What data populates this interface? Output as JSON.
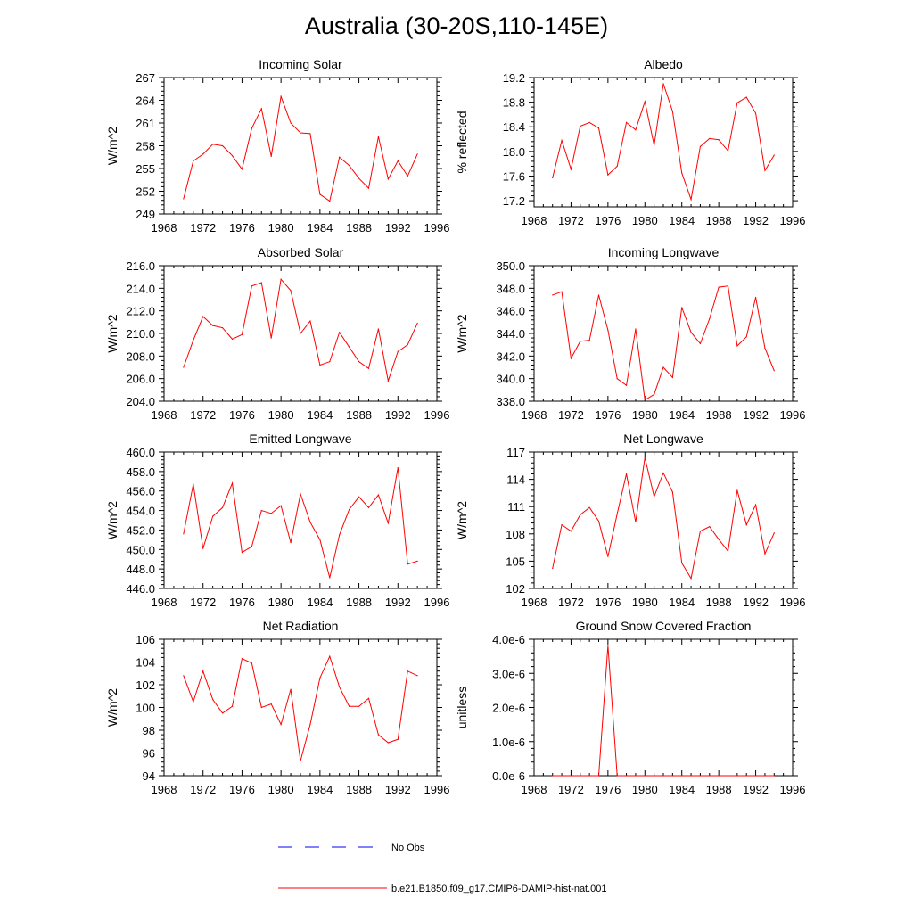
{
  "figure": {
    "title": "Australia (30-20S,110-145E)",
    "series_color": "#ff0000",
    "obs_color": "#0000ff"
  },
  "legend": {
    "entries": [
      {
        "label": "No Obs",
        "style": "dashed",
        "color": "#0000ff"
      },
      {
        "label": "b.e21.B1850.f09_g17.CMIP6-DAMIP-hist-nat.001",
        "style": "solid",
        "color": "#ff0000"
      }
    ]
  },
  "chart_data": [
    {
      "type": "line",
      "title": "Incoming Solar",
      "ylabel": "W/m^2",
      "xlim": [
        1968,
        1996
      ],
      "ylim": [
        249,
        267
      ],
      "xticks": [
        1968,
        1972,
        1976,
        1980,
        1984,
        1988,
        1992,
        1996
      ],
      "yticks": [
        249,
        252,
        255,
        258,
        261,
        264,
        267
      ],
      "ytick_labels": [
        "249",
        "252",
        "255",
        "258",
        "261",
        "264",
        "267"
      ],
      "x": [
        1970,
        1971,
        1972,
        1973,
        1974,
        1975,
        1976,
        1977,
        1978,
        1979,
        1980,
        1981,
        1982,
        1983,
        1984,
        1985,
        1986,
        1987,
        1988,
        1989,
        1990,
        1991,
        1992,
        1993,
        1994
      ],
      "series": [
        {
          "values": [
            251.0,
            256.0,
            256.9,
            258.2,
            258.0,
            256.7,
            254.9,
            260.3,
            262.9,
            256.6,
            264.5,
            261.0,
            259.7,
            259.6,
            251.6,
            250.7,
            256.5,
            255.4,
            253.7,
            252.4,
            259.2,
            253.6,
            256.0,
            254.0,
            256.9
          ]
        }
      ]
    },
    {
      "type": "line",
      "title": "Albedo",
      "ylabel": "% reflected",
      "xlim": [
        1968,
        1996
      ],
      "ylim": [
        17.1,
        19.2
      ],
      "xticks": [
        1968,
        1972,
        1976,
        1980,
        1984,
        1988,
        1992,
        1996
      ],
      "yticks": [
        17.2,
        17.6,
        18.0,
        18.4,
        18.8,
        19.2
      ],
      "ytick_labels": [
        "17.2",
        "17.6",
        "18.0",
        "18.4",
        "18.8",
        "19.2"
      ],
      "x": [
        1970,
        1971,
        1972,
        1973,
        1974,
        1975,
        1976,
        1977,
        1978,
        1979,
        1980,
        1981,
        1982,
        1983,
        1984,
        1985,
        1986,
        1987,
        1988,
        1989,
        1990,
        1991,
        1992,
        1993,
        1994
      ],
      "series": [
        {
          "values": [
            17.57,
            18.18,
            17.71,
            18.41,
            18.47,
            18.38,
            17.62,
            17.76,
            18.47,
            18.35,
            18.81,
            18.1,
            19.1,
            18.65,
            17.65,
            17.22,
            18.08,
            18.21,
            18.19,
            18.01,
            18.79,
            18.88,
            18.62,
            17.69,
            17.94
          ]
        }
      ]
    },
    {
      "type": "line",
      "title": "Absorbed Solar",
      "ylabel": "W/m^2",
      "xlim": [
        1968,
        1996
      ],
      "ylim": [
        204,
        216
      ],
      "xticks": [
        1968,
        1972,
        1976,
        1980,
        1984,
        1988,
        1992,
        1996
      ],
      "yticks": [
        204,
        206,
        208,
        210,
        212,
        214,
        216
      ],
      "ytick_labels": [
        "204.0",
        "206.0",
        "208.0",
        "210.0",
        "212.0",
        "214.0",
        "216.0"
      ],
      "x": [
        1970,
        1971,
        1972,
        1973,
        1974,
        1975,
        1976,
        1977,
        1978,
        1979,
        1980,
        1981,
        1982,
        1983,
        1984,
        1985,
        1986,
        1987,
        1988,
        1989,
        1990,
        1991,
        1992,
        1993,
        1994
      ],
      "series": [
        {
          "values": [
            207.0,
            209.4,
            211.5,
            210.7,
            210.5,
            209.5,
            209.9,
            214.2,
            214.5,
            209.6,
            214.8,
            213.8,
            210.0,
            211.1,
            207.2,
            207.5,
            210.1,
            208.8,
            207.5,
            206.9,
            210.4,
            205.8,
            208.4,
            209.0,
            210.9
          ]
        }
      ]
    },
    {
      "type": "line",
      "title": "Incoming Longwave",
      "ylabel": "W/m^2",
      "xlim": [
        1968,
        1996
      ],
      "ylim": [
        338,
        350
      ],
      "xticks": [
        1968,
        1972,
        1976,
        1980,
        1984,
        1988,
        1992,
        1996
      ],
      "yticks": [
        338,
        340,
        342,
        344,
        346,
        348,
        350
      ],
      "ytick_labels": [
        "338.0",
        "340.0",
        "342.0",
        "344.0",
        "346.0",
        "348.0",
        "350.0"
      ],
      "x": [
        1970,
        1971,
        1972,
        1973,
        1974,
        1975,
        1976,
        1977,
        1978,
        1979,
        1980,
        1981,
        1982,
        1983,
        1984,
        1985,
        1986,
        1987,
        1988,
        1989,
        1990,
        1991,
        1992,
        1993,
        1994
      ],
      "series": [
        {
          "values": [
            347.4,
            347.7,
            341.8,
            343.3,
            343.4,
            347.4,
            344.3,
            340.0,
            339.4,
            344.4,
            338.1,
            338.6,
            341.0,
            340.1,
            346.3,
            344.1,
            343.1,
            345.3,
            348.1,
            348.2,
            342.9,
            343.7,
            347.2,
            342.7,
            340.7
          ]
        }
      ]
    },
    {
      "type": "line",
      "title": "Emitted Longwave",
      "ylabel": "W/m^2",
      "xlim": [
        1968,
        1996
      ],
      "ylim": [
        446,
        460
      ],
      "xticks": [
        1968,
        1972,
        1976,
        1980,
        1984,
        1988,
        1992,
        1996
      ],
      "yticks": [
        446,
        448,
        450,
        452,
        454,
        456,
        458,
        460
      ],
      "ytick_labels": [
        "446.0",
        "448.0",
        "450.0",
        "452.0",
        "454.0",
        "456.0",
        "458.0",
        "460.0"
      ],
      "x": [
        1970,
        1971,
        1972,
        1973,
        1974,
        1975,
        1976,
        1977,
        1978,
        1979,
        1980,
        1981,
        1982,
        1983,
        1984,
        1985,
        1986,
        1987,
        1988,
        1989,
        1990,
        1991,
        1992,
        1993,
        1994
      ],
      "series": [
        {
          "values": [
            451.6,
            456.7,
            450.1,
            453.4,
            454.3,
            456.8,
            449.7,
            450.3,
            454.0,
            453.7,
            454.5,
            450.7,
            455.7,
            452.8,
            451.0,
            447.1,
            451.5,
            454.1,
            455.4,
            454.3,
            455.6,
            452.7,
            458.4,
            448.5,
            448.8
          ]
        }
      ]
    },
    {
      "type": "line",
      "title": "Net Longwave",
      "ylabel": "W/m^2",
      "xlim": [
        1968,
        1996
      ],
      "ylim": [
        102,
        117
      ],
      "xticks": [
        1968,
        1972,
        1976,
        1980,
        1984,
        1988,
        1992,
        1996
      ],
      "yticks": [
        102,
        105,
        108,
        111,
        114,
        117
      ],
      "ytick_labels": [
        "102",
        "105",
        "108",
        "111",
        "114",
        "117"
      ],
      "x": [
        1970,
        1971,
        1972,
        1973,
        1974,
        1975,
        1976,
        1977,
        1978,
        1979,
        1980,
        1981,
        1982,
        1983,
        1984,
        1985,
        1986,
        1987,
        1988,
        1989,
        1990,
        1991,
        1992,
        1993,
        1994
      ],
      "series": [
        {
          "values": [
            104.2,
            109.0,
            108.3,
            110.1,
            110.9,
            109.4,
            105.5,
            110.2,
            114.6,
            109.3,
            116.4,
            112.1,
            114.7,
            112.6,
            104.8,
            103.1,
            108.3,
            108.8,
            107.4,
            106.1,
            112.8,
            109.0,
            111.2,
            105.8,
            108.1
          ]
        }
      ]
    },
    {
      "type": "line",
      "title": "Net Radiation",
      "ylabel": "W/m^2",
      "xlim": [
        1968,
        1996
      ],
      "ylim": [
        94,
        106
      ],
      "xticks": [
        1968,
        1972,
        1976,
        1980,
        1984,
        1988,
        1992,
        1996
      ],
      "yticks": [
        94,
        96,
        98,
        100,
        102,
        104,
        106
      ],
      "ytick_labels": [
        "94",
        "96",
        "98",
        "100",
        "102",
        "104",
        "106"
      ],
      "x": [
        1970,
        1971,
        1972,
        1973,
        1974,
        1975,
        1976,
        1977,
        1978,
        1979,
        1980,
        1981,
        1982,
        1983,
        1984,
        1985,
        1986,
        1987,
        1988,
        1989,
        1990,
        1991,
        1992,
        1993,
        1994
      ],
      "series": [
        {
          "values": [
            102.8,
            100.5,
            103.2,
            100.7,
            99.5,
            100.1,
            104.3,
            103.9,
            100.0,
            100.3,
            98.5,
            101.6,
            95.3,
            98.5,
            102.6,
            104.5,
            101.8,
            100.1,
            100.1,
            100.8,
            97.6,
            96.9,
            97.2,
            103.2,
            102.8
          ]
        }
      ]
    },
    {
      "type": "line",
      "title": "Ground Snow Covered Fraction",
      "ylabel": "unitless",
      "xlim": [
        1968,
        1996
      ],
      "ylim": [
        0,
        4e-06
      ],
      "xticks": [
        1968,
        1972,
        1976,
        1980,
        1984,
        1988,
        1992,
        1996
      ],
      "yticks": [
        0,
        1e-06,
        2e-06,
        3e-06,
        4e-06
      ],
      "ytick_labels": [
        "0.0e-6",
        "1.0e-6",
        "2.0e-6",
        "3.0e-6",
        "4.0e-6"
      ],
      "x": [
        1970,
        1971,
        1972,
        1973,
        1974,
        1975,
        1976,
        1977,
        1978,
        1979,
        1980,
        1981,
        1982,
        1983,
        1984,
        1985,
        1986,
        1987,
        1988,
        1989,
        1990,
        1991,
        1992,
        1993,
        1994
      ],
      "series": [
        {
          "values": [
            0,
            0,
            0,
            0,
            0,
            0,
            3.82e-06,
            0,
            0,
            0,
            0,
            0,
            0,
            0,
            0,
            0,
            0,
            0,
            0,
            0,
            0,
            0,
            0,
            0,
            0
          ]
        }
      ]
    }
  ]
}
